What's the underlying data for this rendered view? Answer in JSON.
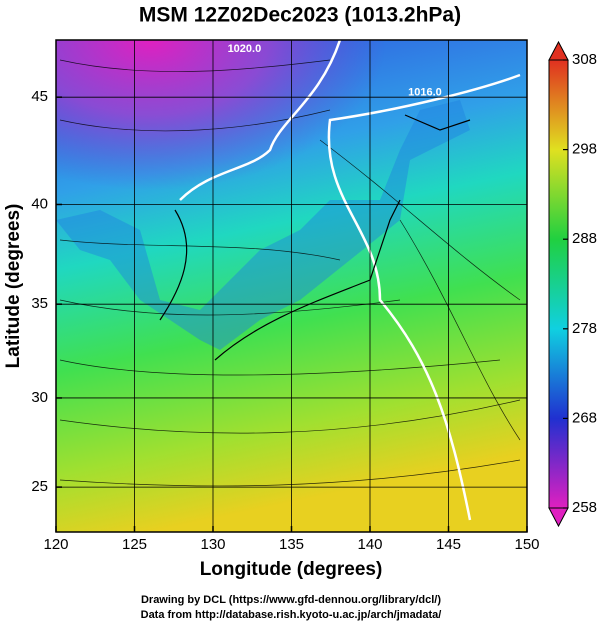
{
  "chart_data": {
    "type": "map",
    "title": "MSM 12Z02Dec2023 (1013.2hPa)",
    "xlabel": "Longitude (degrees)",
    "ylabel": "Latitude  (degrees)",
    "projection": "mercator",
    "xlim": [
      120,
      150
    ],
    "xticks": [
      120,
      125,
      130,
      135,
      140,
      145,
      150
    ],
    "ylim": [
      22.4,
      47.5
    ],
    "yticks": [
      25,
      30,
      35,
      40,
      45
    ],
    "grid": true,
    "annotations": [
      {
        "text": "1020.0",
        "x": 132,
        "y": 47.1
      },
      {
        "text": "1016.0",
        "x": 143.5,
        "y": 45.2
      }
    ],
    "colorbar": {
      "lim": [
        258,
        308
      ],
      "ticks": [
        258,
        268,
        278,
        288,
        298,
        308
      ],
      "colors": [
        "#e020c0",
        "#2030d0",
        "#10d0e0",
        "#20d040",
        "#e0e020",
        "#e03020"
      ]
    },
    "footer": [
      "Drawing by DCL (https://www.gfd-dennou.org/library/dcl/)",
      "Data from http://database.rish.kyoto-u.ac.jp/arch/jmadata/"
    ]
  }
}
